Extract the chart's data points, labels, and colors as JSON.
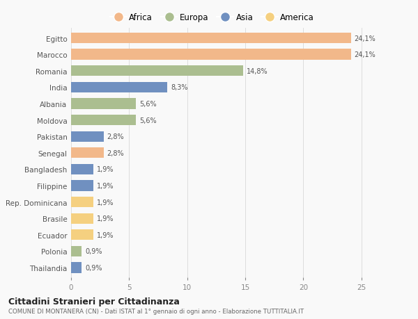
{
  "countries": [
    "Egitto",
    "Marocco",
    "Romania",
    "India",
    "Albania",
    "Moldova",
    "Pakistan",
    "Senegal",
    "Bangladesh",
    "Filippine",
    "Rep. Dominicana",
    "Brasile",
    "Ecuador",
    "Polonia",
    "Thailandia"
  ],
  "values": [
    24.1,
    24.1,
    14.8,
    8.3,
    5.6,
    5.6,
    2.8,
    2.8,
    1.9,
    1.9,
    1.9,
    1.9,
    1.9,
    0.9,
    0.9
  ],
  "labels": [
    "24,1%",
    "24,1%",
    "14,8%",
    "8,3%",
    "5,6%",
    "5,6%",
    "2,8%",
    "2,8%",
    "1,9%",
    "1,9%",
    "1,9%",
    "1,9%",
    "1,9%",
    "0,9%",
    "0,9%"
  ],
  "colors": [
    "#F2B88A",
    "#F2B88A",
    "#ABBE90",
    "#7090C0",
    "#ABBE90",
    "#ABBE90",
    "#7090C0",
    "#F2B88A",
    "#7090C0",
    "#7090C0",
    "#F5D080",
    "#F5D080",
    "#F5D080",
    "#ABBE90",
    "#7090C0"
  ],
  "legend_labels": [
    "Africa",
    "Europa",
    "Asia",
    "America"
  ],
  "legend_colors": [
    "#F2B88A",
    "#ABBE90",
    "#7090C0",
    "#F5D080"
  ],
  "xlim": [
    0,
    27
  ],
  "xticks": [
    0,
    5,
    10,
    15,
    20,
    25
  ],
  "title": "Cittadini Stranieri per Cittadinanza",
  "subtitle": "COMUNE DI MONTANERA (CN) - Dati ISTAT al 1° gennaio di ogni anno - Elaborazione TUTTITALIA.IT",
  "bg_color": "#f9f9f9",
  "bar_height": 0.65
}
